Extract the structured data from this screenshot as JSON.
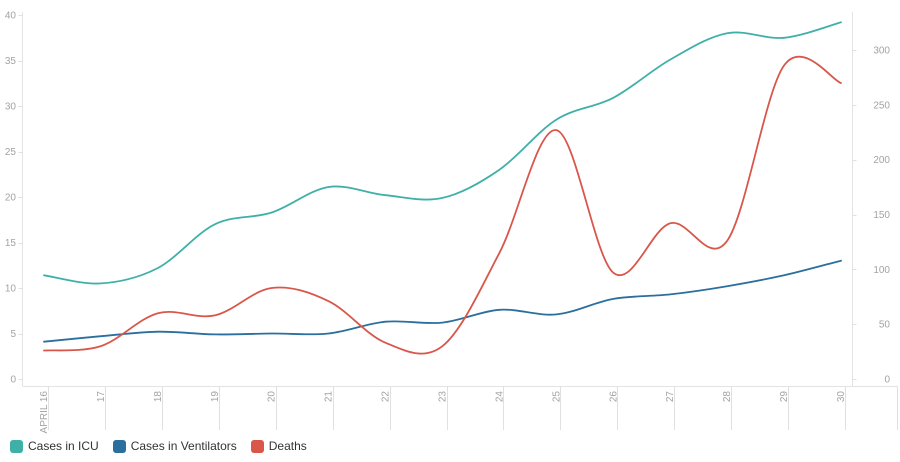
{
  "chart_data": {
    "type": "line",
    "smooth": true,
    "title": "",
    "categories": [
      "APRIL 16",
      "17",
      "18",
      "19",
      "20",
      "21",
      "22",
      "23",
      "24",
      "25",
      "26",
      "27",
      "28",
      "29",
      "30"
    ],
    "series": [
      {
        "name": "Cases in ICU",
        "color": "#3fb0a8",
        "y_axis": "left",
        "values": [
          11.4,
          10.5,
          12.2,
          17.0,
          18.3,
          21.1,
          20.2,
          19.9,
          23.0,
          28.5,
          30.9,
          35.1,
          38.0,
          37.5,
          39.2
        ]
      },
      {
        "name": "Cases in Ventilators",
        "color": "#2a6f9e",
        "y_axis": "left",
        "values": [
          4.1,
          4.7,
          5.2,
          4.9,
          5.0,
          5.0,
          6.3,
          6.2,
          7.6,
          7.1,
          8.8,
          9.3,
          10.2,
          11.4,
          13.0
        ]
      },
      {
        "name": "Deaths",
        "color": "#d8574a",
        "y_axis": "right",
        "values": [
          26,
          30,
          60,
          58,
          83,
          71,
          33,
          30,
          115,
          227,
          97,
          142,
          126,
          286,
          270
        ]
      }
    ],
    "left_axis": {
      "min": 0,
      "max": 40,
      "ticks": [
        0,
        5,
        10,
        15,
        20,
        25,
        30,
        35,
        40
      ]
    },
    "right_axis": {
      "min": 0,
      "max": 332,
      "ticks": [
        0,
        50,
        100,
        150,
        200,
        250,
        300
      ]
    },
    "grid": false,
    "legend_position": "bottom-left",
    "xlabel": "",
    "ylabel": ""
  },
  "style_colors": {
    "axis_line": "#e3e3e3",
    "tick_line": "#e0e0e0",
    "axis_label": "#a3a3a3",
    "legend_text": "#333333",
    "background": "#ffffff"
  }
}
